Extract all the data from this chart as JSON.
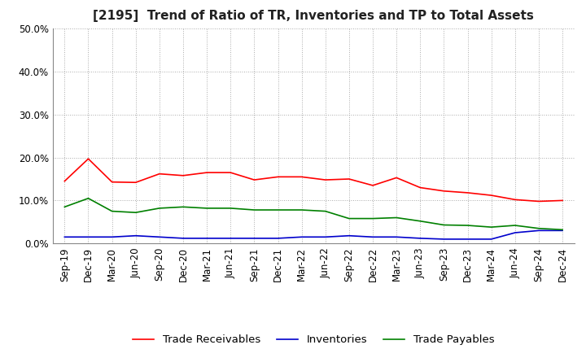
{
  "title": "[2195]  Trend of Ratio of TR, Inventories and TP to Total Assets",
  "ylim": [
    0.0,
    0.5
  ],
  "yticks": [
    0.0,
    0.1,
    0.2,
    0.3,
    0.4,
    0.5
  ],
  "x_labels": [
    "Sep-19",
    "Dec-19",
    "Mar-20",
    "Jun-20",
    "Sep-20",
    "Dec-20",
    "Mar-21",
    "Jun-21",
    "Sep-21",
    "Dec-21",
    "Mar-22",
    "Jun-22",
    "Sep-22",
    "Dec-22",
    "Mar-23",
    "Jun-23",
    "Sep-23",
    "Dec-23",
    "Mar-24",
    "Jun-24",
    "Sep-24",
    "Dec-24"
  ],
  "trade_receivables": [
    0.145,
    0.197,
    0.143,
    0.142,
    0.162,
    0.158,
    0.165,
    0.165,
    0.148,
    0.155,
    0.155,
    0.148,
    0.15,
    0.135,
    0.153,
    0.13,
    0.122,
    0.118,
    0.112,
    0.102,
    0.098,
    0.1
  ],
  "inventories": [
    0.015,
    0.015,
    0.015,
    0.018,
    0.015,
    0.012,
    0.012,
    0.012,
    0.012,
    0.012,
    0.015,
    0.015,
    0.018,
    0.015,
    0.015,
    0.012,
    0.01,
    0.01,
    0.01,
    0.025,
    0.03,
    0.03
  ],
  "trade_payables": [
    0.085,
    0.105,
    0.075,
    0.072,
    0.082,
    0.085,
    0.082,
    0.082,
    0.078,
    0.078,
    0.078,
    0.075,
    0.058,
    0.058,
    0.06,
    0.052,
    0.043,
    0.042,
    0.038,
    0.042,
    0.035,
    0.032
  ],
  "tr_color": "#ff0000",
  "inv_color": "#0000cc",
  "tp_color": "#008000",
  "background_color": "#ffffff",
  "grid_color": "#aaaaaa",
  "title_fontsize": 11,
  "tick_fontsize": 8.5,
  "legend_fontsize": 9.5
}
